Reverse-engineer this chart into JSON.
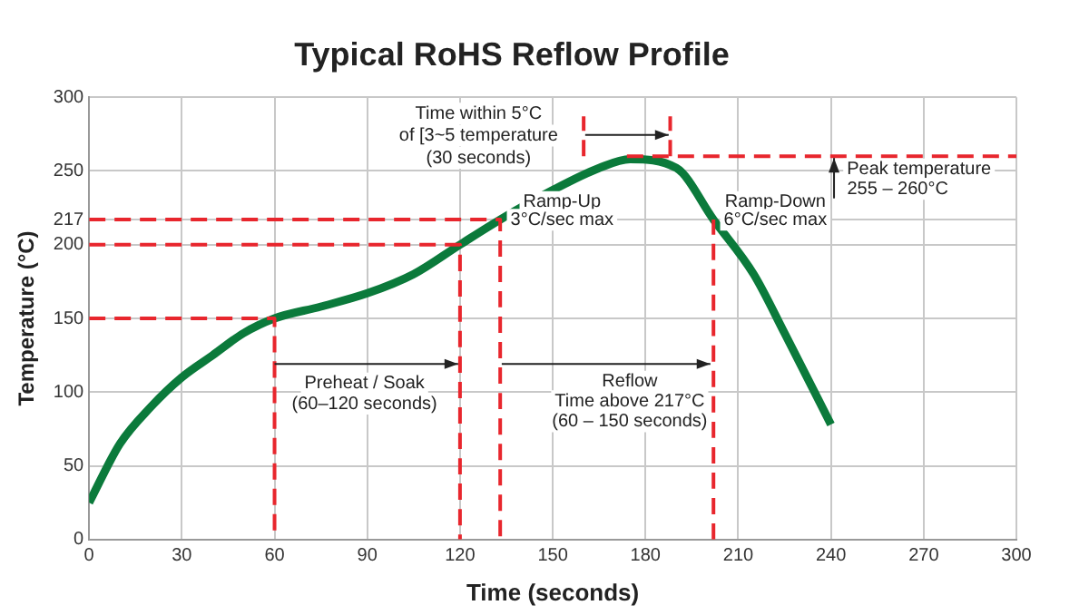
{
  "chart_data": {
    "type": "line",
    "title": "Typical RoHS Reflow Profile",
    "xlabel": "Time (seconds)",
    "ylabel": "Temperature (°C)",
    "xlim": [
      0,
      300
    ],
    "xticks": [
      0,
      30,
      60,
      90,
      120,
      150,
      180,
      210,
      240,
      270,
      300
    ],
    "ylim": [
      0,
      300
    ],
    "yticks": [
      0,
      50,
      100,
      150,
      200,
      217,
      250,
      300
    ],
    "grid": true,
    "legend": false,
    "marker": "none",
    "series": [
      {
        "color": "#0b7a3b",
        "line_style": "solid",
        "x": [
          0,
          10,
          20,
          30,
          40,
          50,
          60,
          75,
          90,
          105,
          120,
          133,
          150,
          165,
          175,
          190,
          202,
          215,
          225,
          240
        ],
        "values": [
          25,
          65,
          90,
          110,
          125,
          140,
          150,
          158,
          167,
          180,
          200,
          217,
          237,
          252,
          258,
          252,
          217,
          180,
          140,
          78
        ]
      },
      {
        "color": "#e8262d",
        "line_style": "dashed",
        "x": [
          0,
          60,
          60
        ],
        "values": [
          150,
          150,
          0
        ]
      },
      {
        "color": "#e8262d",
        "line_style": "dashed",
        "x": [
          0,
          120,
          120
        ],
        "values": [
          200,
          200,
          0
        ]
      },
      {
        "color": "#e8262d",
        "line_style": "dashed",
        "x": [
          0,
          133,
          133
        ],
        "values": [
          217,
          217,
          0
        ]
      },
      {
        "color": "#e8262d",
        "line_style": "dashed",
        "x": [
          202,
          202
        ],
        "values": [
          0,
          217
        ]
      },
      {
        "color": "#e8262d",
        "line_style": "dashed",
        "x": [
          160,
          160
        ],
        "values": [
          260,
          287
        ]
      },
      {
        "color": "#e8262d",
        "line_style": "dashed",
        "x": [
          188,
          188
        ],
        "values": [
          260,
          287
        ]
      },
      {
        "color": "#e8262d",
        "line_style": "dashed",
        "x": [
          174,
          300
        ],
        "values": [
          260,
          260
        ]
      }
    ],
    "annotations": [
      "Time within 5°C",
      "of [3~5 temperature",
      "(30 seconds)",
      "Ramp-Up",
      "3°C/sec max",
      "Ramp-Down",
      "6°C/sec max",
      {
        "text": "Peak temperature",
        "x": 241,
        "y": 260
      },
      "255 – 260°C",
      "Preheat / Soak",
      "(60–120 seconds)",
      "Reflow",
      "Time above 217°C",
      "(60 – 150 seconds)"
    ]
  }
}
